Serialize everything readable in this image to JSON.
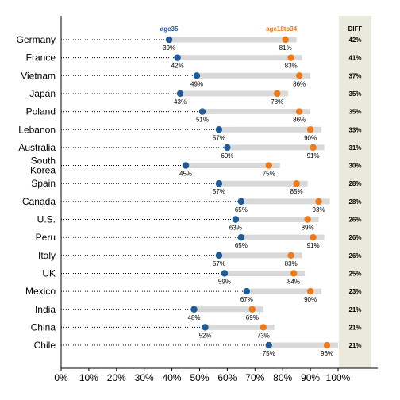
{
  "chart_data": {
    "type": "dumbbell",
    "xlim": [
      0,
      100
    ],
    "x_ticks": [
      "0%",
      "10%",
      "20%",
      "30%",
      "40%",
      "50%",
      "60%",
      "70%",
      "80%",
      "90%",
      "100%"
    ],
    "series": [
      {
        "name": "age35",
        "color": "#1f5b99"
      },
      {
        "name": "age18to34",
        "color": "#f07a1a"
      }
    ],
    "diff_header": "DIFF",
    "diff_panel_color": "#e9e9dc",
    "bar_color": "#d9d9d9",
    "rows": [
      {
        "country": [
          "Germany"
        ],
        "age35": 39,
        "age18to34": 81,
        "age35_label": "39%",
        "age18to34_label": "81%",
        "diff": "42%"
      },
      {
        "country": [
          "France"
        ],
        "age35": 42,
        "age18to34": 83,
        "age35_label": "42%",
        "age18to34_label": "83%",
        "diff": "41%"
      },
      {
        "country": [
          "Vietnam"
        ],
        "age35": 49,
        "age18to34": 86,
        "age35_label": "49%",
        "age18to34_label": "86%",
        "diff": "37%"
      },
      {
        "country": [
          "Japan"
        ],
        "age35": 43,
        "age18to34": 78,
        "age35_label": "43%",
        "age18to34_label": "78%",
        "diff": "35%"
      },
      {
        "country": [
          "Poland"
        ],
        "age35": 51,
        "age18to34": 86,
        "age35_label": "51%",
        "age18to34_label": "86%",
        "diff": "35%"
      },
      {
        "country": [
          "Lebanon"
        ],
        "age35": 57,
        "age18to34": 90,
        "age35_label": "57%",
        "age18to34_label": "90%",
        "diff": "33%"
      },
      {
        "country": [
          "Australia"
        ],
        "age35": 60,
        "age18to34": 91,
        "age35_label": "60%",
        "age18to34_label": "91%",
        "diff": "31%"
      },
      {
        "country": [
          "South",
          "Korea"
        ],
        "age35": 45,
        "age18to34": 75,
        "age35_label": "45%",
        "age18to34_label": "75%",
        "diff": "30%"
      },
      {
        "country": [
          "Spain"
        ],
        "age35": 57,
        "age18to34": 85,
        "age35_label": "57%",
        "age18to34_label": "85%",
        "diff": "28%"
      },
      {
        "country": [
          "Canada"
        ],
        "age35": 65,
        "age18to34": 93,
        "age35_label": "65%",
        "age18to34_label": "93%",
        "diff": "28%"
      },
      {
        "country": [
          "U.S."
        ],
        "age35": 63,
        "age18to34": 89,
        "age35_label": "63%",
        "age18to34_label": "89%",
        "diff": "26%"
      },
      {
        "country": [
          "Peru"
        ],
        "age35": 65,
        "age18to34": 91,
        "age35_label": "65%",
        "age18to34_label": "91%",
        "diff": "26%"
      },
      {
        "country": [
          "Italy"
        ],
        "age35": 57,
        "age18to34": 83,
        "age35_label": "57%",
        "age18to34_label": "83%",
        "diff": "26%"
      },
      {
        "country": [
          "UK"
        ],
        "age35": 59,
        "age18to34": 84,
        "age35_label": "59%",
        "age18to34_label": "84%",
        "diff": "25%"
      },
      {
        "country": [
          "Mexico"
        ],
        "age35": 67,
        "age18to34": 90,
        "age35_label": "67%",
        "age18to34_label": "90%",
        "diff": "23%"
      },
      {
        "country": [
          "India"
        ],
        "age35": 48,
        "age18to34": 69,
        "age35_label": "48%",
        "age18to34_label": "69%",
        "diff": "21%"
      },
      {
        "country": [
          "China"
        ],
        "age35": 52,
        "age18to34": 73,
        "age35_label": "52%",
        "age18to34_label": "73%",
        "diff": "21%"
      },
      {
        "country": [
          "Chile"
        ],
        "age35": 75,
        "age18to34": 96,
        "age35_label": "75%",
        "age18to34_label": "96%",
        "diff": "21%"
      }
    ]
  }
}
